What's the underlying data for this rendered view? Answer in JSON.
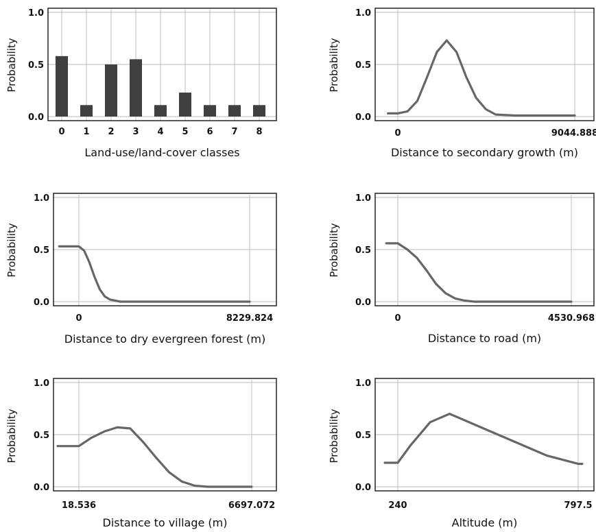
{
  "chart_data": [
    {
      "type": "bar",
      "ylabel": "Probability",
      "xlabel": "Land-use/land-cover classes",
      "ylim": [
        0,
        1
      ],
      "yticks": [
        "0.0",
        "0.5",
        "1.0"
      ],
      "categories": [
        "0",
        "1",
        "2",
        "3",
        "4",
        "5",
        "6",
        "7",
        "8"
      ],
      "values": [
        0.58,
        0.11,
        0.5,
        0.55,
        0.11,
        0.23,
        0.11,
        0.11,
        0.11
      ],
      "bar_color": "#404040"
    },
    {
      "type": "line",
      "ylabel": "Probability",
      "xlabel": "Distance to secondary growth (m)",
      "ylim": [
        0,
        1
      ],
      "yticks": [
        "0.0",
        "0.5",
        "1.0"
      ],
      "xlim": [
        0,
        9044.888
      ],
      "xtick_labels": [
        "0",
        "9044.888"
      ],
      "x": [
        -500,
        0,
        500,
        1000,
        1500,
        2000,
        2500,
        3000,
        3500,
        4000,
        4500,
        5000,
        6000,
        7000,
        8000,
        9044.888
      ],
      "y": [
        0.03,
        0.03,
        0.05,
        0.15,
        0.38,
        0.62,
        0.73,
        0.62,
        0.38,
        0.18,
        0.07,
        0.02,
        0.01,
        0.01,
        0.01,
        0.01
      ],
      "line_color": "#666666"
    },
    {
      "type": "line",
      "ylabel": "Probability",
      "xlabel": "Distance to dry evergreen forest (m)",
      "ylim": [
        0,
        1
      ],
      "yticks": [
        "0.0",
        "0.5",
        "1.0"
      ],
      "xlim": [
        0,
        8229.824
      ],
      "xtick_labels": [
        "0",
        "8229.824"
      ],
      "x": [
        -950,
        0,
        250,
        500,
        750,
        1000,
        1250,
        1500,
        1750,
        2000,
        2500,
        4000,
        6000,
        8229.824
      ],
      "y": [
        0.53,
        0.53,
        0.49,
        0.38,
        0.24,
        0.12,
        0.05,
        0.02,
        0.01,
        0.0,
        0.0,
        0.0,
        0.0,
        0.0
      ],
      "line_color": "#666666"
    },
    {
      "type": "line",
      "ylabel": "Probability",
      "xlabel": "Distance to road (m)",
      "ylim": [
        0,
        1
      ],
      "yticks": [
        "0.0",
        "0.5",
        "1.0"
      ],
      "xlim": [
        0,
        4530.968
      ],
      "xtick_labels": [
        "0",
        "4530.968"
      ],
      "x": [
        -300,
        0,
        250,
        500,
        750,
        1000,
        1250,
        1500,
        1750,
        2000,
        2500,
        3000,
        4000,
        4530.968
      ],
      "y": [
        0.56,
        0.56,
        0.5,
        0.42,
        0.3,
        0.17,
        0.08,
        0.03,
        0.01,
        0.0,
        0.0,
        0.0,
        0.0,
        0.0
      ],
      "line_color": "#666666"
    },
    {
      "type": "line",
      "ylabel": "Probability",
      "xlabel": "Distance to village (m)",
      "ylim": [
        0,
        1
      ],
      "yticks": [
        "0.0",
        "0.5",
        "1.0"
      ],
      "xlim": [
        18.536,
        6697.072
      ],
      "xtick_labels": [
        "18.536",
        "6697.072"
      ],
      "x": [
        -1000,
        18.536,
        500,
        1000,
        1500,
        2000,
        2500,
        3000,
        3500,
        4000,
        4500,
        5000,
        5500,
        6000,
        6697.072
      ],
      "y": [
        0.39,
        0.39,
        0.47,
        0.53,
        0.57,
        0.56,
        0.43,
        0.28,
        0.14,
        0.05,
        0.01,
        0.0,
        0.0,
        0.0,
        0.0
      ],
      "line_color": "#666666"
    },
    {
      "type": "line",
      "ylabel": "Probability",
      "xlabel": "Altitude (m)",
      "ylim": [
        0,
        1
      ],
      "yticks": [
        "0.0",
        "0.5",
        "1.0"
      ],
      "xlim": [
        240,
        797.5
      ],
      "xtick_labels": [
        "240",
        "797.5"
      ],
      "x": [
        200,
        240,
        280,
        340,
        400,
        550,
        700,
        797.5,
        810
      ],
      "y": [
        0.23,
        0.23,
        0.4,
        0.62,
        0.7,
        0.5,
        0.3,
        0.22,
        0.22
      ],
      "line_color": "#666666"
    }
  ]
}
